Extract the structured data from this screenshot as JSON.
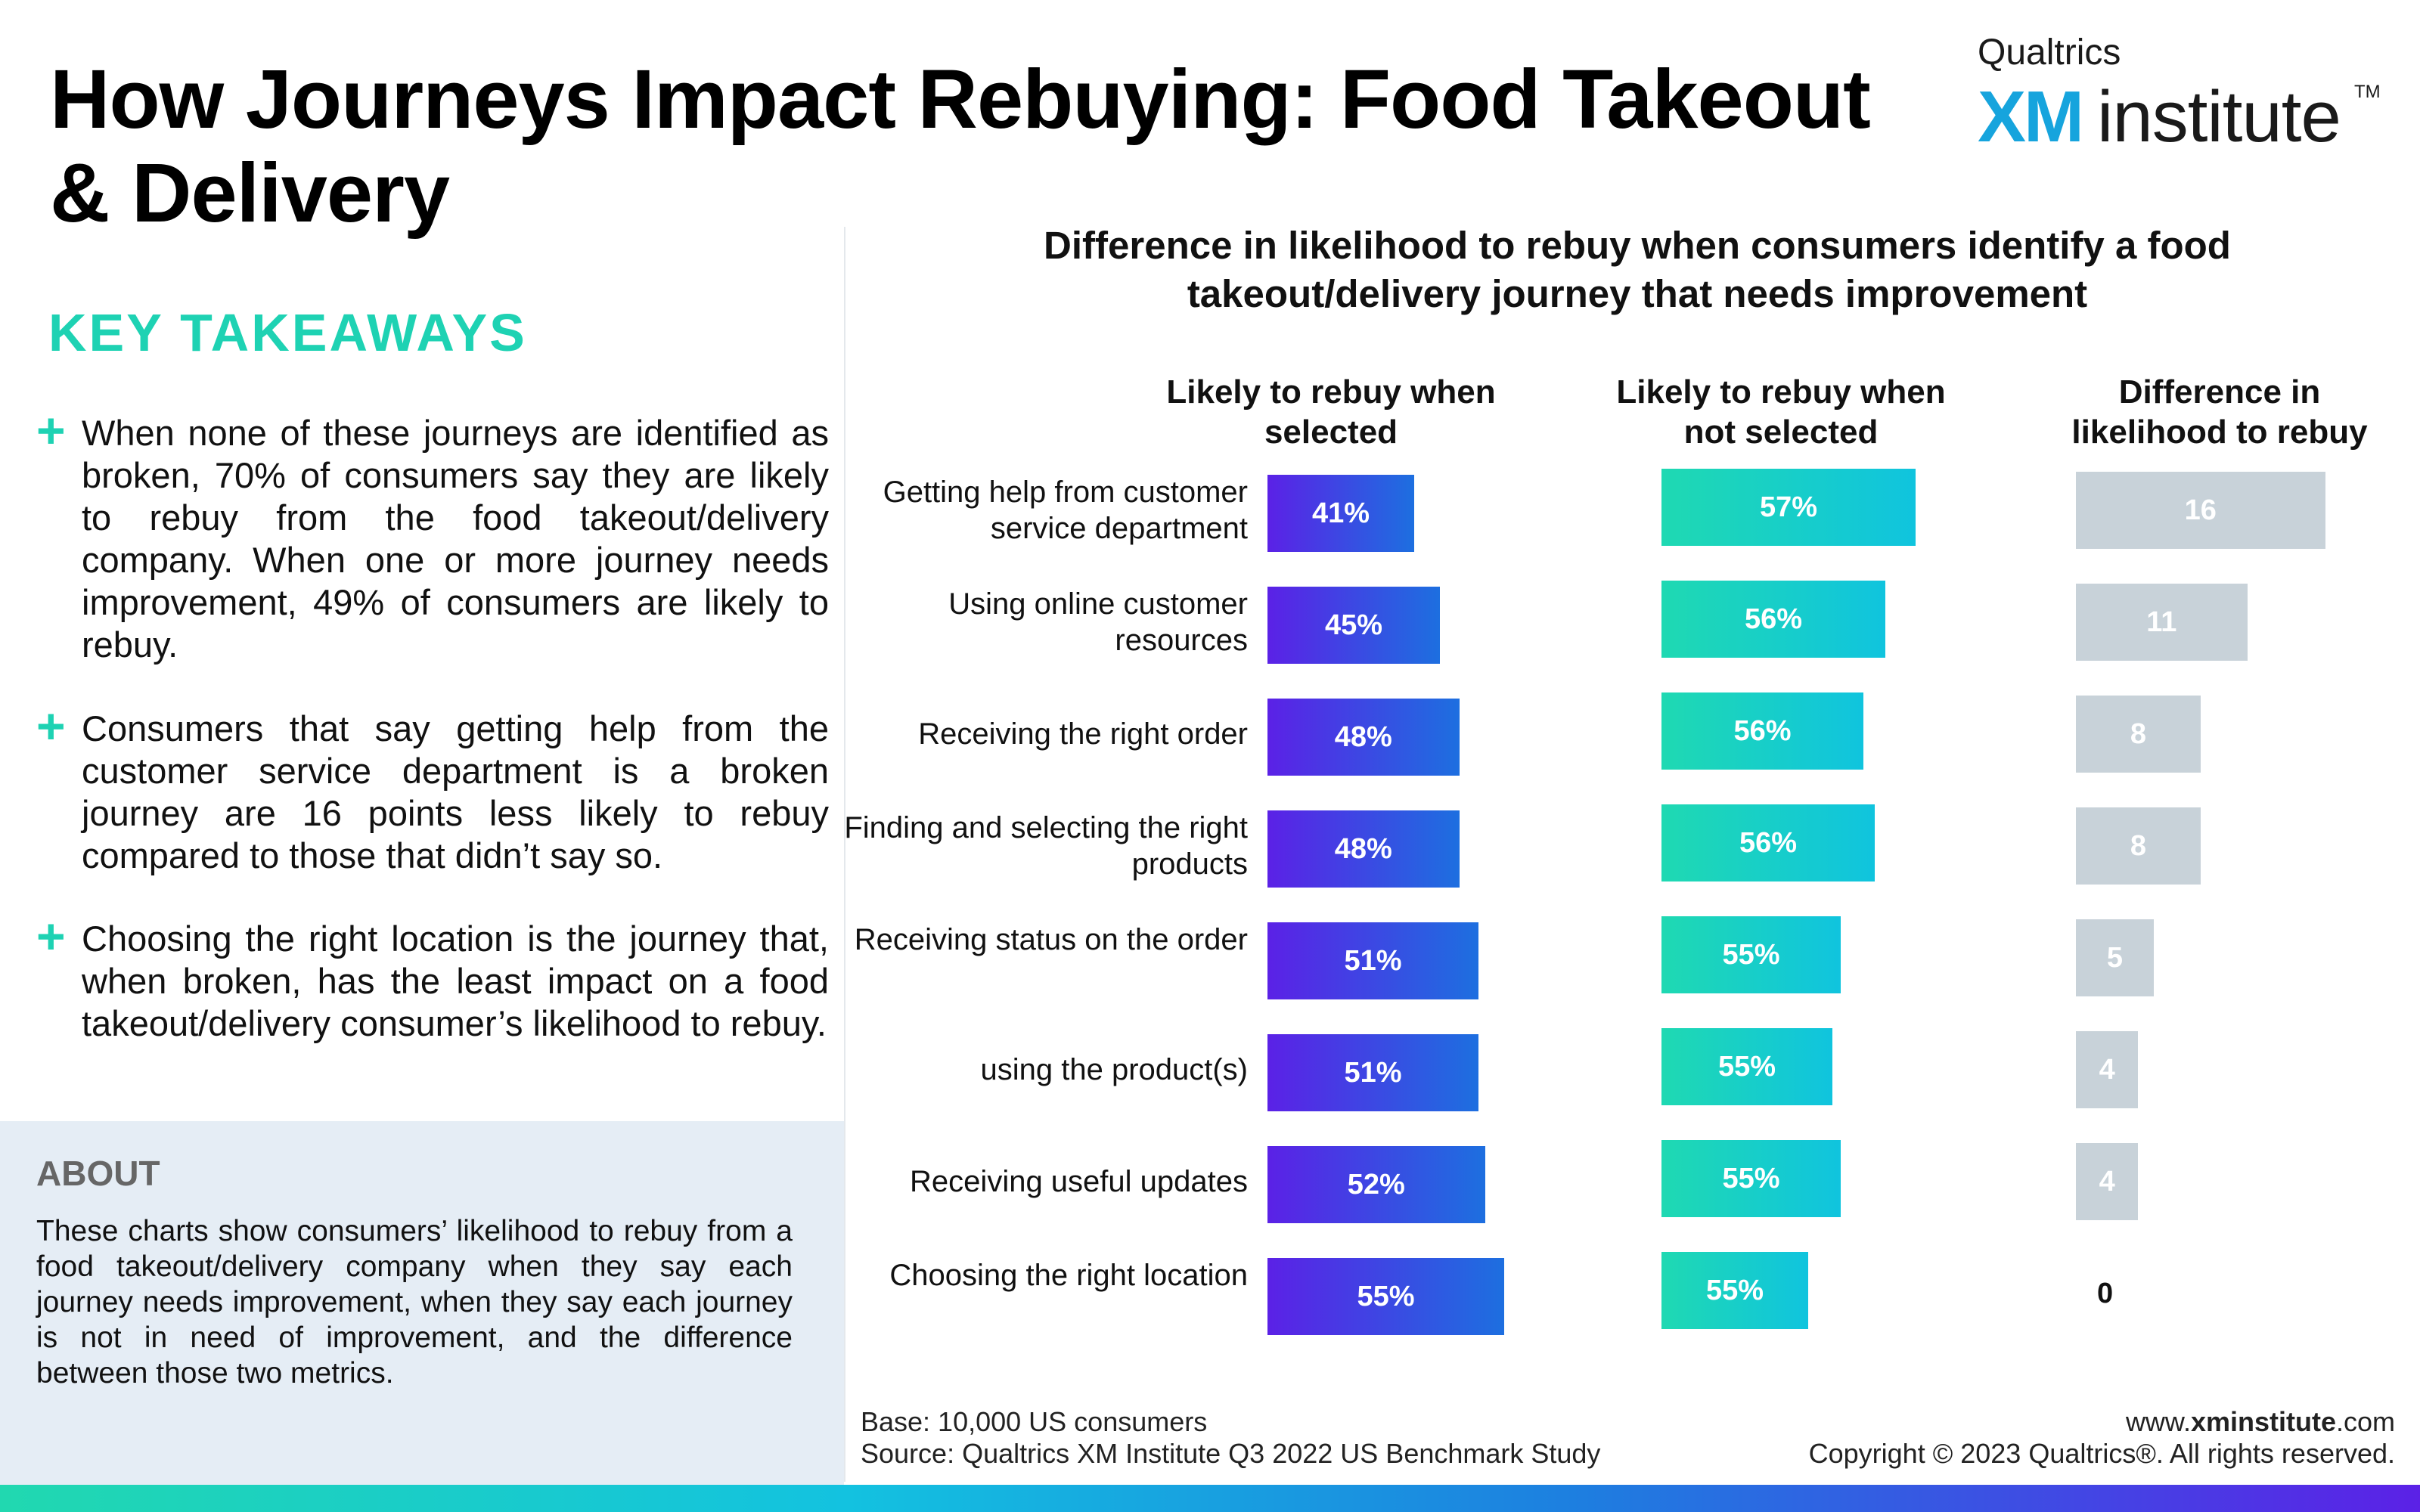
{
  "header": {
    "title": "How Journeys Impact Rebuying: Food Takeout & Delivery",
    "brand_top": "Qualtrics",
    "brand_xm": "XM",
    "brand_institute": "institute",
    "brand_tm": "TM"
  },
  "takeaways": {
    "heading": "KEY TAKEAWAYS",
    "items": [
      "When none of these journeys are identified as broken, 70% of consumers say they are likely to rebuy from the food takeout/delivery company. When one or more journey needs improvement, 49% of consumers are likely to rebuy.",
      "Consumers that say getting help from the customer service department is a broken journey are 16 points less likely to rebuy compared to those that didn’t say so.",
      "Choosing the right location is the journey that, when broken, has the least impact on a food takeout/delivery consumer’s likelihood to rebuy."
    ]
  },
  "about": {
    "heading": "ABOUT",
    "text": "These charts show consumers’ likelihood to rebuy from a food takeout/delivery company when they say each journey needs improvement, when they say each journey is not in need of improvement, and the difference between those two metrics."
  },
  "chart_data": {
    "type": "bar",
    "title": "Difference in likelihood to rebuy when consumers identify a food takeout/delivery journey that needs improvement",
    "categories": [
      "Getting help from customer service department",
      "Using online customer resources",
      "Receiving the right order",
      "Finding and selecting the right products",
      "Receiving status on the order",
      "using the product(s)",
      "Receiving useful updates",
      "Choosing the right location"
    ],
    "series": [
      {
        "name": "Likely to rebuy when selected",
        "values": [
          41,
          45,
          48,
          48,
          51,
          51,
          52,
          55
        ],
        "labels": [
          "41%",
          "45%",
          "48%",
          "48%",
          "51%",
          "51%",
          "52%",
          "55%"
        ],
        "color": "#5b21e6"
      },
      {
        "name": "Likely to rebuy when not selected",
        "values": [
          57,
          56,
          56,
          56,
          55,
          55,
          55,
          55
        ],
        "labels": [
          "57%",
          "56%",
          "56%",
          "56%",
          "55%",
          "55%",
          "55%",
          "55%"
        ],
        "color": "#1fd9b2"
      },
      {
        "name": "Difference in likelihood to rebuy",
        "values": [
          16,
          11,
          8,
          8,
          5,
          4,
          4,
          0
        ],
        "labels": [
          "16",
          "11",
          "8",
          "8",
          "5",
          "4",
          "4",
          "0"
        ],
        "color": "#c8d2d9"
      }
    ]
  },
  "footer": {
    "base": "Base: 10,000 US consumers",
    "source": "Source: Qualtrics XM Institute Q3 2022 US Benchmark Study",
    "url_prefix": "www.",
    "url_bold": "xminstitute",
    "url_suffix": ".com",
    "copyright": "Copyright © 2023 Qualtrics®. All rights reserved."
  }
}
